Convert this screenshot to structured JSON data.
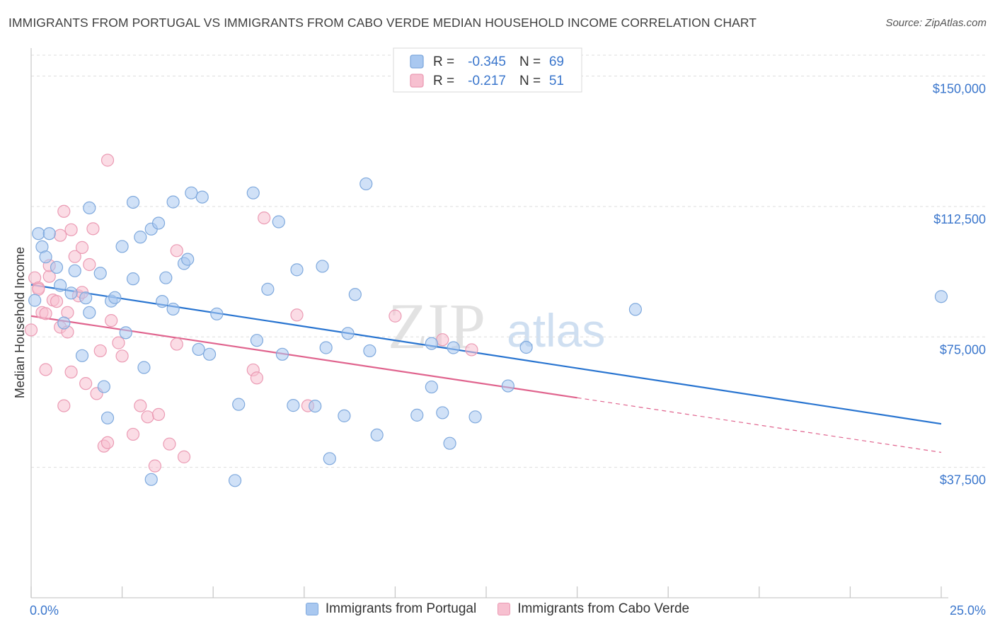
{
  "header": {
    "title": "IMMIGRANTS FROM PORTUGAL VS IMMIGRANTS FROM CABO VERDE MEDIAN HOUSEHOLD INCOME CORRELATION CHART",
    "source": "Source: ZipAtlas.com"
  },
  "colors": {
    "blue_fill": "#a9c8f0",
    "blue_stroke": "#7fa9dd",
    "blue_line": "#2874d0",
    "pink_fill": "#f7c0d0",
    "pink_stroke": "#eb9bb4",
    "pink_line": "#e0648e",
    "axis_text": "#3a76cc",
    "grid": "#dddddd"
  },
  "watermark": {
    "zip": "ZIP",
    "atlas": "atlas"
  },
  "chart_data": {
    "type": "scatter",
    "ylabel": "Median Household Income",
    "xlim": [
      0,
      25
    ],
    "ylim": [
      0,
      156000
    ],
    "x_tick_labels": [
      "0.0%",
      "25.0%"
    ],
    "y_ticks": [
      37500,
      75000,
      112500,
      150000
    ],
    "y_tick_labels": [
      "$37,500",
      "$75,000",
      "$112,500",
      "$150,000"
    ],
    "grid": true,
    "legend_placement": "top-center",
    "stats": [
      {
        "r_label": "R = ",
        "r": "-0.345",
        "n_label": "N = ",
        "n": "69"
      },
      {
        "r_label": "R = ",
        "r": "-0.217",
        "n_label": "N = ",
        "n": "51"
      }
    ],
    "series": [
      {
        "name": "Immigrants from Portugal",
        "trend": {
          "x": [
            0,
            25
          ],
          "y": [
            90000,
            50000
          ]
        },
        "points": [
          [
            0.1,
            85500
          ],
          [
            0.2,
            104700
          ],
          [
            0.3,
            100900
          ],
          [
            0.4,
            98000
          ],
          [
            0.5,
            104700
          ],
          [
            0.7,
            95000
          ],
          [
            0.8,
            89800
          ],
          [
            0.9,
            79000
          ],
          [
            1.1,
            87600
          ],
          [
            1.2,
            94000
          ],
          [
            1.4,
            69600
          ],
          [
            1.5,
            86200
          ],
          [
            1.6,
            82000
          ],
          [
            1.6,
            112100
          ],
          [
            1.9,
            93300
          ],
          [
            2.0,
            60700
          ],
          [
            2.1,
            51700
          ],
          [
            2.2,
            85300
          ],
          [
            2.3,
            86300
          ],
          [
            2.5,
            101000
          ],
          [
            2.6,
            76200
          ],
          [
            2.8,
            113700
          ],
          [
            2.8,
            91700
          ],
          [
            3.0,
            103700
          ],
          [
            3.1,
            66200
          ],
          [
            3.3,
            34000
          ],
          [
            3.3,
            106000
          ],
          [
            3.5,
            107700
          ],
          [
            3.6,
            85200
          ],
          [
            3.7,
            92000
          ],
          [
            3.9,
            83000
          ],
          [
            3.9,
            113800
          ],
          [
            4.2,
            96100
          ],
          [
            4.3,
            97300
          ],
          [
            4.4,
            116400
          ],
          [
            4.7,
            115200
          ],
          [
            4.6,
            71400
          ],
          [
            4.9,
            70000
          ],
          [
            5.1,
            81600
          ],
          [
            5.6,
            33700
          ],
          [
            5.7,
            55600
          ],
          [
            6.1,
            116400
          ],
          [
            6.2,
            74000
          ],
          [
            6.5,
            88700
          ],
          [
            6.8,
            108100
          ],
          [
            6.9,
            70000
          ],
          [
            7.2,
            55300
          ],
          [
            7.3,
            94300
          ],
          [
            7.8,
            55100
          ],
          [
            8.0,
            95300
          ],
          [
            8.1,
            71900
          ],
          [
            8.2,
            40000
          ],
          [
            8.6,
            52300
          ],
          [
            8.7,
            76000
          ],
          [
            8.9,
            87200
          ],
          [
            9.2,
            119000
          ],
          [
            9.3,
            71000
          ],
          [
            9.5,
            46800
          ],
          [
            10.6,
            52500
          ],
          [
            11.0,
            73100
          ],
          [
            11.0,
            60600
          ],
          [
            11.3,
            53200
          ],
          [
            11.5,
            44400
          ],
          [
            11.6,
            71900
          ],
          [
            12.2,
            52000
          ],
          [
            13.1,
            60900
          ],
          [
            13.6,
            72000
          ],
          [
            16.6,
            82900
          ],
          [
            25.0,
            86600
          ]
        ]
      },
      {
        "name": "Immigrants from Cabo Verde",
        "trend": {
          "x": [
            0,
            15
          ],
          "y": [
            81000,
            57500
          ]
        },
        "trend_dashed": {
          "x": [
            15,
            25
          ],
          "y": [
            57500,
            41800
          ]
        },
        "points": [
          [
            0.0,
            77000
          ],
          [
            0.1,
            92000
          ],
          [
            0.2,
            89100
          ],
          [
            0.3,
            82000
          ],
          [
            0.4,
            65600
          ],
          [
            0.4,
            81700
          ],
          [
            0.5,
            92400
          ],
          [
            0.5,
            95500
          ],
          [
            0.6,
            85600
          ],
          [
            0.7,
            85200
          ],
          [
            0.8,
            104200
          ],
          [
            0.8,
            77800
          ],
          [
            0.9,
            55200
          ],
          [
            0.9,
            111100
          ],
          [
            1.0,
            82000
          ],
          [
            1.0,
            76400
          ],
          [
            1.1,
            64900
          ],
          [
            1.1,
            105800
          ],
          [
            1.2,
            98100
          ],
          [
            1.3,
            86800
          ],
          [
            1.4,
            87800
          ],
          [
            1.4,
            100700
          ],
          [
            1.5,
            61600
          ],
          [
            1.6,
            95800
          ],
          [
            1.7,
            106100
          ],
          [
            1.8,
            58700
          ],
          [
            1.9,
            71000
          ],
          [
            2.0,
            43600
          ],
          [
            2.1,
            44600
          ],
          [
            2.1,
            125800
          ],
          [
            2.2,
            79700
          ],
          [
            2.4,
            73300
          ],
          [
            2.5,
            69500
          ],
          [
            2.8,
            47000
          ],
          [
            3.0,
            55200
          ],
          [
            3.2,
            52000
          ],
          [
            3.4,
            37900
          ],
          [
            3.5,
            52700
          ],
          [
            3.8,
            44200
          ],
          [
            4.0,
            72900
          ],
          [
            4.0,
            99800
          ],
          [
            4.2,
            40500
          ],
          [
            6.1,
            65500
          ],
          [
            6.2,
            63200
          ],
          [
            6.4,
            109200
          ],
          [
            7.3,
            81300
          ],
          [
            7.6,
            55200
          ],
          [
            10.0,
            81000
          ],
          [
            11.3,
            74200
          ],
          [
            12.1,
            71300
          ],
          [
            0.2,
            88700
          ]
        ]
      }
    ]
  }
}
